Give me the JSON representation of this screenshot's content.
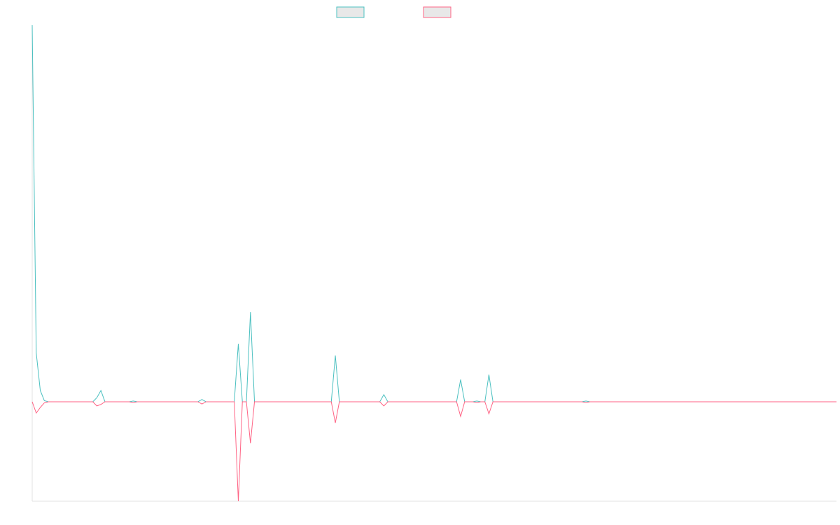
{
  "chart_data": {
    "type": "line",
    "series": [
      {
        "color": "#4bc0c0",
        "values": [
          100,
          13,
          3,
          0.3,
          0,
          0,
          0,
          0,
          0,
          0,
          0,
          0,
          0,
          0,
          0,
          0,
          1.1,
          3,
          0,
          0,
          0,
          0,
          0,
          0,
          0,
          0.2,
          0,
          0,
          0,
          0,
          0,
          0,
          0,
          0,
          0,
          0,
          0,
          0,
          0,
          0,
          0,
          0,
          0.6,
          0,
          0,
          0,
          0,
          0,
          0,
          0,
          0,
          15.4,
          0,
          0,
          23.8,
          0,
          0,
          0,
          0,
          0,
          0,
          0,
          0,
          0,
          0,
          0,
          0,
          0,
          0,
          0,
          0,
          0,
          0,
          0,
          0,
          12.3,
          0,
          0,
          0,
          0,
          0,
          0,
          0,
          0,
          0,
          0,
          0,
          1.9,
          0,
          0,
          0,
          0,
          0,
          0,
          0,
          0,
          0,
          0,
          0,
          0,
          0,
          0,
          0,
          0,
          0,
          0,
          5.9,
          0,
          0,
          0,
          0.2,
          0,
          0,
          7.2,
          0,
          0,
          0,
          0,
          0,
          0,
          0,
          0,
          0,
          0,
          0,
          0,
          0,
          0,
          0,
          0,
          0,
          0,
          0,
          0,
          0,
          0,
          0,
          0.2,
          0,
          0,
          0,
          0,
          0,
          0,
          0,
          0,
          0,
          0,
          0,
          0,
          0,
          0,
          0,
          0,
          0,
          0,
          0,
          0,
          0,
          0,
          0,
          0,
          0,
          0,
          0,
          0,
          0,
          0,
          0,
          0,
          0,
          0,
          0,
          0,
          0,
          0,
          0,
          0,
          0,
          0,
          0,
          0,
          0,
          0,
          0,
          0,
          0,
          0,
          0,
          0,
          0,
          0,
          0,
          0,
          0,
          0,
          0,
          0,
          0,
          0
        ]
      },
      {
        "color": "#ff6384",
        "values": [
          0,
          -3,
          -1.5,
          -0.3,
          0,
          0,
          0,
          0,
          0,
          0,
          0,
          0,
          0,
          0,
          0,
          0,
          -1.1,
          -0.7,
          0,
          0,
          0,
          0,
          0,
          0,
          0,
          -0.2,
          0,
          0,
          0,
          0,
          0,
          0,
          0,
          0,
          0,
          0,
          0,
          0,
          0,
          0,
          0,
          0,
          -0.6,
          0,
          0,
          0,
          0,
          0,
          0,
          0,
          0,
          -26.4,
          0,
          0,
          -11,
          0,
          0,
          0,
          0,
          0,
          0,
          0,
          0,
          0,
          0,
          0,
          0,
          0,
          0,
          0,
          0,
          0,
          0,
          0,
          0,
          -5.6,
          0,
          0,
          0,
          0,
          0,
          0,
          0,
          0,
          0,
          0,
          0,
          -1.1,
          0,
          0,
          0,
          0,
          0,
          0,
          0,
          0,
          0,
          0,
          0,
          0,
          0,
          0,
          0,
          0,
          0,
          0,
          -3.9,
          0,
          0,
          0,
          -0.2,
          0,
          0,
          -3.2,
          0,
          0,
          0,
          0,
          0,
          0,
          0,
          0,
          0,
          0,
          0,
          0,
          0,
          0,
          0,
          0,
          0,
          0,
          0,
          0,
          0,
          0,
          0,
          -0.2,
          0,
          0,
          0,
          0,
          0,
          0,
          0,
          0,
          0,
          0,
          0,
          0,
          0,
          0,
          0,
          0,
          0,
          0,
          0,
          0,
          0,
          0,
          0,
          0,
          0,
          0,
          0,
          0,
          0,
          0,
          0,
          0,
          0,
          0,
          0,
          0,
          0,
          0,
          0,
          0,
          0,
          0,
          0,
          0,
          0,
          0,
          0,
          0,
          0,
          0,
          0,
          0,
          0,
          0,
          0,
          0,
          0,
          0,
          0,
          0,
          0,
          0
        ]
      }
    ]
  }
}
